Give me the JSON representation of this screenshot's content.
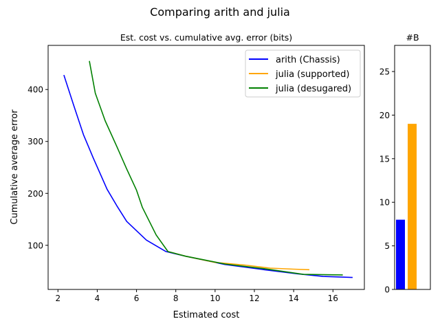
{
  "figure_title": "Comparing arith and julia",
  "chart_data": [
    {
      "type": "line",
      "title": "Est. cost vs. cumulative avg. error (bits)",
      "xlabel": "Estimated cost",
      "ylabel": "Cumulative average error",
      "xlim": [
        1.5,
        17.6
      ],
      "ylim": [
        15,
        485
      ],
      "xticks": [
        2,
        4,
        6,
        8,
        10,
        12,
        14,
        16
      ],
      "yticks": [
        100,
        200,
        300,
        400
      ],
      "grid": false,
      "legend_position": "top-right",
      "series": [
        {
          "name": "arith (Chassis)",
          "color": "#0000ff",
          "points": [
            [
              2.3,
              428
            ],
            [
              2.8,
              370
            ],
            [
              3.3,
              313
            ],
            [
              3.8,
              268
            ],
            [
              4.5,
              208
            ],
            [
              5.0,
              176
            ],
            [
              5.5,
              146
            ],
            [
              6.5,
              110
            ],
            [
              7.5,
              88
            ],
            [
              8.5,
              79
            ],
            [
              10.5,
              63
            ],
            [
              12.5,
              53
            ],
            [
              14.2,
              45
            ],
            [
              15.5,
              40
            ],
            [
              17.0,
              38
            ]
          ]
        },
        {
          "name": "julia (supported)",
          "color": "#ffa500",
          "points": [
            [
              7.6,
              88
            ],
            [
              8.5,
              79
            ],
            [
              10.0,
              67
            ],
            [
              11.5,
              62
            ],
            [
              12.8,
              56
            ],
            [
              14.0,
              54
            ],
            [
              14.8,
              53
            ]
          ]
        },
        {
          "name": "julia (desugared)",
          "color": "#008000",
          "points": [
            [
              3.6,
              455
            ],
            [
              3.9,
              393
            ],
            [
              4.4,
              340
            ],
            [
              5.0,
              290
            ],
            [
              5.5,
              247
            ],
            [
              6.0,
              206
            ],
            [
              6.3,
              173
            ],
            [
              7.0,
              120
            ],
            [
              7.6,
              88
            ],
            [
              8.5,
              79
            ],
            [
              10.5,
              64
            ],
            [
              12.5,
              55
            ],
            [
              14.5,
              44
            ],
            [
              16.5,
              43
            ]
          ]
        }
      ]
    },
    {
      "type": "bar",
      "title": "#B",
      "ylim": [
        0,
        28
      ],
      "yticks": [
        0,
        5,
        10,
        15,
        20,
        25
      ],
      "grid": false,
      "values": [
        8,
        19
      ],
      "colors": [
        "#0000ff",
        "#ffa500"
      ]
    }
  ]
}
